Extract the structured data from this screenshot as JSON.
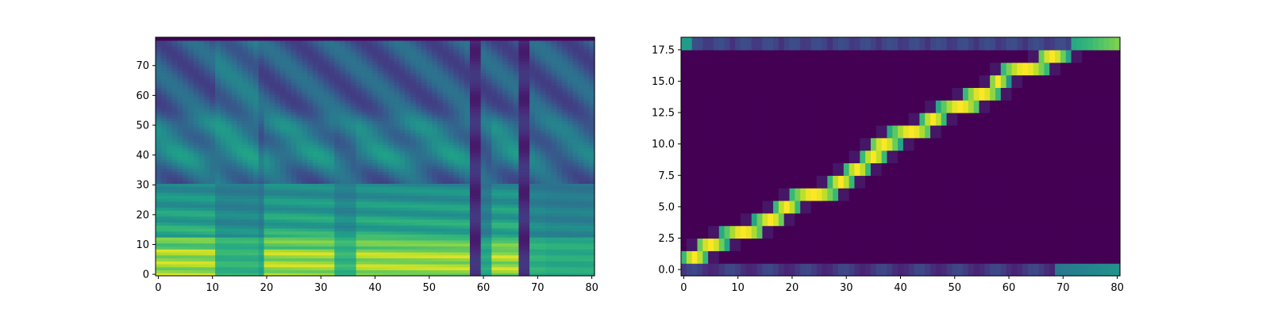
{
  "colormap": {
    "name": "viridis",
    "stops": [
      "#440154",
      "#482878",
      "#3e4989",
      "#31688e",
      "#26828e",
      "#1f9e89",
      "#35b779",
      "#6ece58",
      "#b5de2b",
      "#fde725"
    ]
  },
  "chart_data": [
    {
      "type": "heatmap",
      "description_role": "mel-spectrogram",
      "title": "",
      "xlabel": "",
      "ylabel": "",
      "x_range": [
        0,
        81
      ],
      "y_range": [
        0,
        80
      ],
      "xlim": [
        -0.5,
        80.5
      ],
      "ylim": [
        -0.5,
        79.5
      ],
      "xticks": [
        0,
        10,
        20,
        30,
        40,
        50,
        60,
        70,
        80
      ],
      "xtick_labels": [
        "0",
        "10",
        "20",
        "30",
        "40",
        "50",
        "60",
        "70",
        "80"
      ],
      "yticks": [
        0,
        10,
        20,
        30,
        40,
        50,
        60,
        70
      ],
      "ytick_labels": [
        "0",
        "10",
        "20",
        "30",
        "40",
        "50",
        "60",
        "70"
      ],
      "origin": "lower",
      "colormap": "viridis",
      "silence_columns": [
        58,
        59,
        67,
        68
      ],
      "bright_column_bands": [
        [
          0,
          10
        ],
        [
          20,
          32
        ],
        [
          37,
          47
        ],
        [
          48,
          57
        ],
        [
          62,
          66
        ]
      ]
    },
    {
      "type": "heatmap",
      "description_role": "alignment",
      "title": "",
      "xlabel": "",
      "ylabel": "",
      "x_range": [
        0,
        81
      ],
      "y_range": [
        0,
        19
      ],
      "xlim": [
        -0.5,
        80.5
      ],
      "ylim": [
        -0.5,
        18.5
      ],
      "xticks": [
        0,
        10,
        20,
        30,
        40,
        50,
        60,
        70,
        80
      ],
      "xtick_labels": [
        "0",
        "10",
        "20",
        "30",
        "40",
        "50",
        "60",
        "70",
        "80"
      ],
      "yticks": [
        0,
        2.5,
        5,
        7.5,
        10,
        12.5,
        15,
        17.5
      ],
      "ytick_labels": [
        "0.0",
        "2.5",
        "5.0",
        "7.5",
        "10.0",
        "12.5",
        "15.0",
        "17.5"
      ],
      "origin": "lower",
      "colormap": "viridis",
      "alignment_path": [
        {
          "row": 1,
          "x_start": 0,
          "x_end": 4,
          "peak": 2
        },
        {
          "row": 2,
          "x_start": 3,
          "x_end": 8,
          "peak": 5
        },
        {
          "row": 3,
          "x_start": 7,
          "x_end": 14,
          "peak": 11
        },
        {
          "row": 4,
          "x_start": 13,
          "x_end": 18,
          "peak": 16
        },
        {
          "row": 5,
          "x_start": 17,
          "x_end": 21,
          "peak": 19
        },
        {
          "row": 6,
          "x_start": 20,
          "x_end": 28,
          "peak": 24
        },
        {
          "row": 7,
          "x_start": 27,
          "x_end": 31,
          "peak": 29
        },
        {
          "row": 8,
          "x_start": 30,
          "x_end": 34,
          "peak": 32
        },
        {
          "row": 9,
          "x_start": 33,
          "x_end": 37,
          "peak": 35
        },
        {
          "row": 10,
          "x_start": 35,
          "x_end": 40,
          "peak": 37
        },
        {
          "row": 11,
          "x_start": 38,
          "x_end": 45,
          "peak": 42
        },
        {
          "row": 12,
          "x_start": 44,
          "x_end": 48,
          "peak": 46
        },
        {
          "row": 13,
          "x_start": 47,
          "x_end": 54,
          "peak": 51
        },
        {
          "row": 14,
          "x_start": 52,
          "x_end": 58,
          "peak": 55
        },
        {
          "row": 15,
          "x_start": 57,
          "x_end": 60,
          "peak": 58
        },
        {
          "row": 16,
          "x_start": 59,
          "x_end": 67,
          "peak": 63
        },
        {
          "row": 17,
          "x_start": 66,
          "x_end": 71,
          "peak": 68
        }
      ],
      "edge_rows": [
        {
          "row": 0,
          "note": "low band, rising to teal after x≈69"
        },
        {
          "row": 18,
          "note": "low band, rising to green after x≈72"
        }
      ]
    }
  ]
}
